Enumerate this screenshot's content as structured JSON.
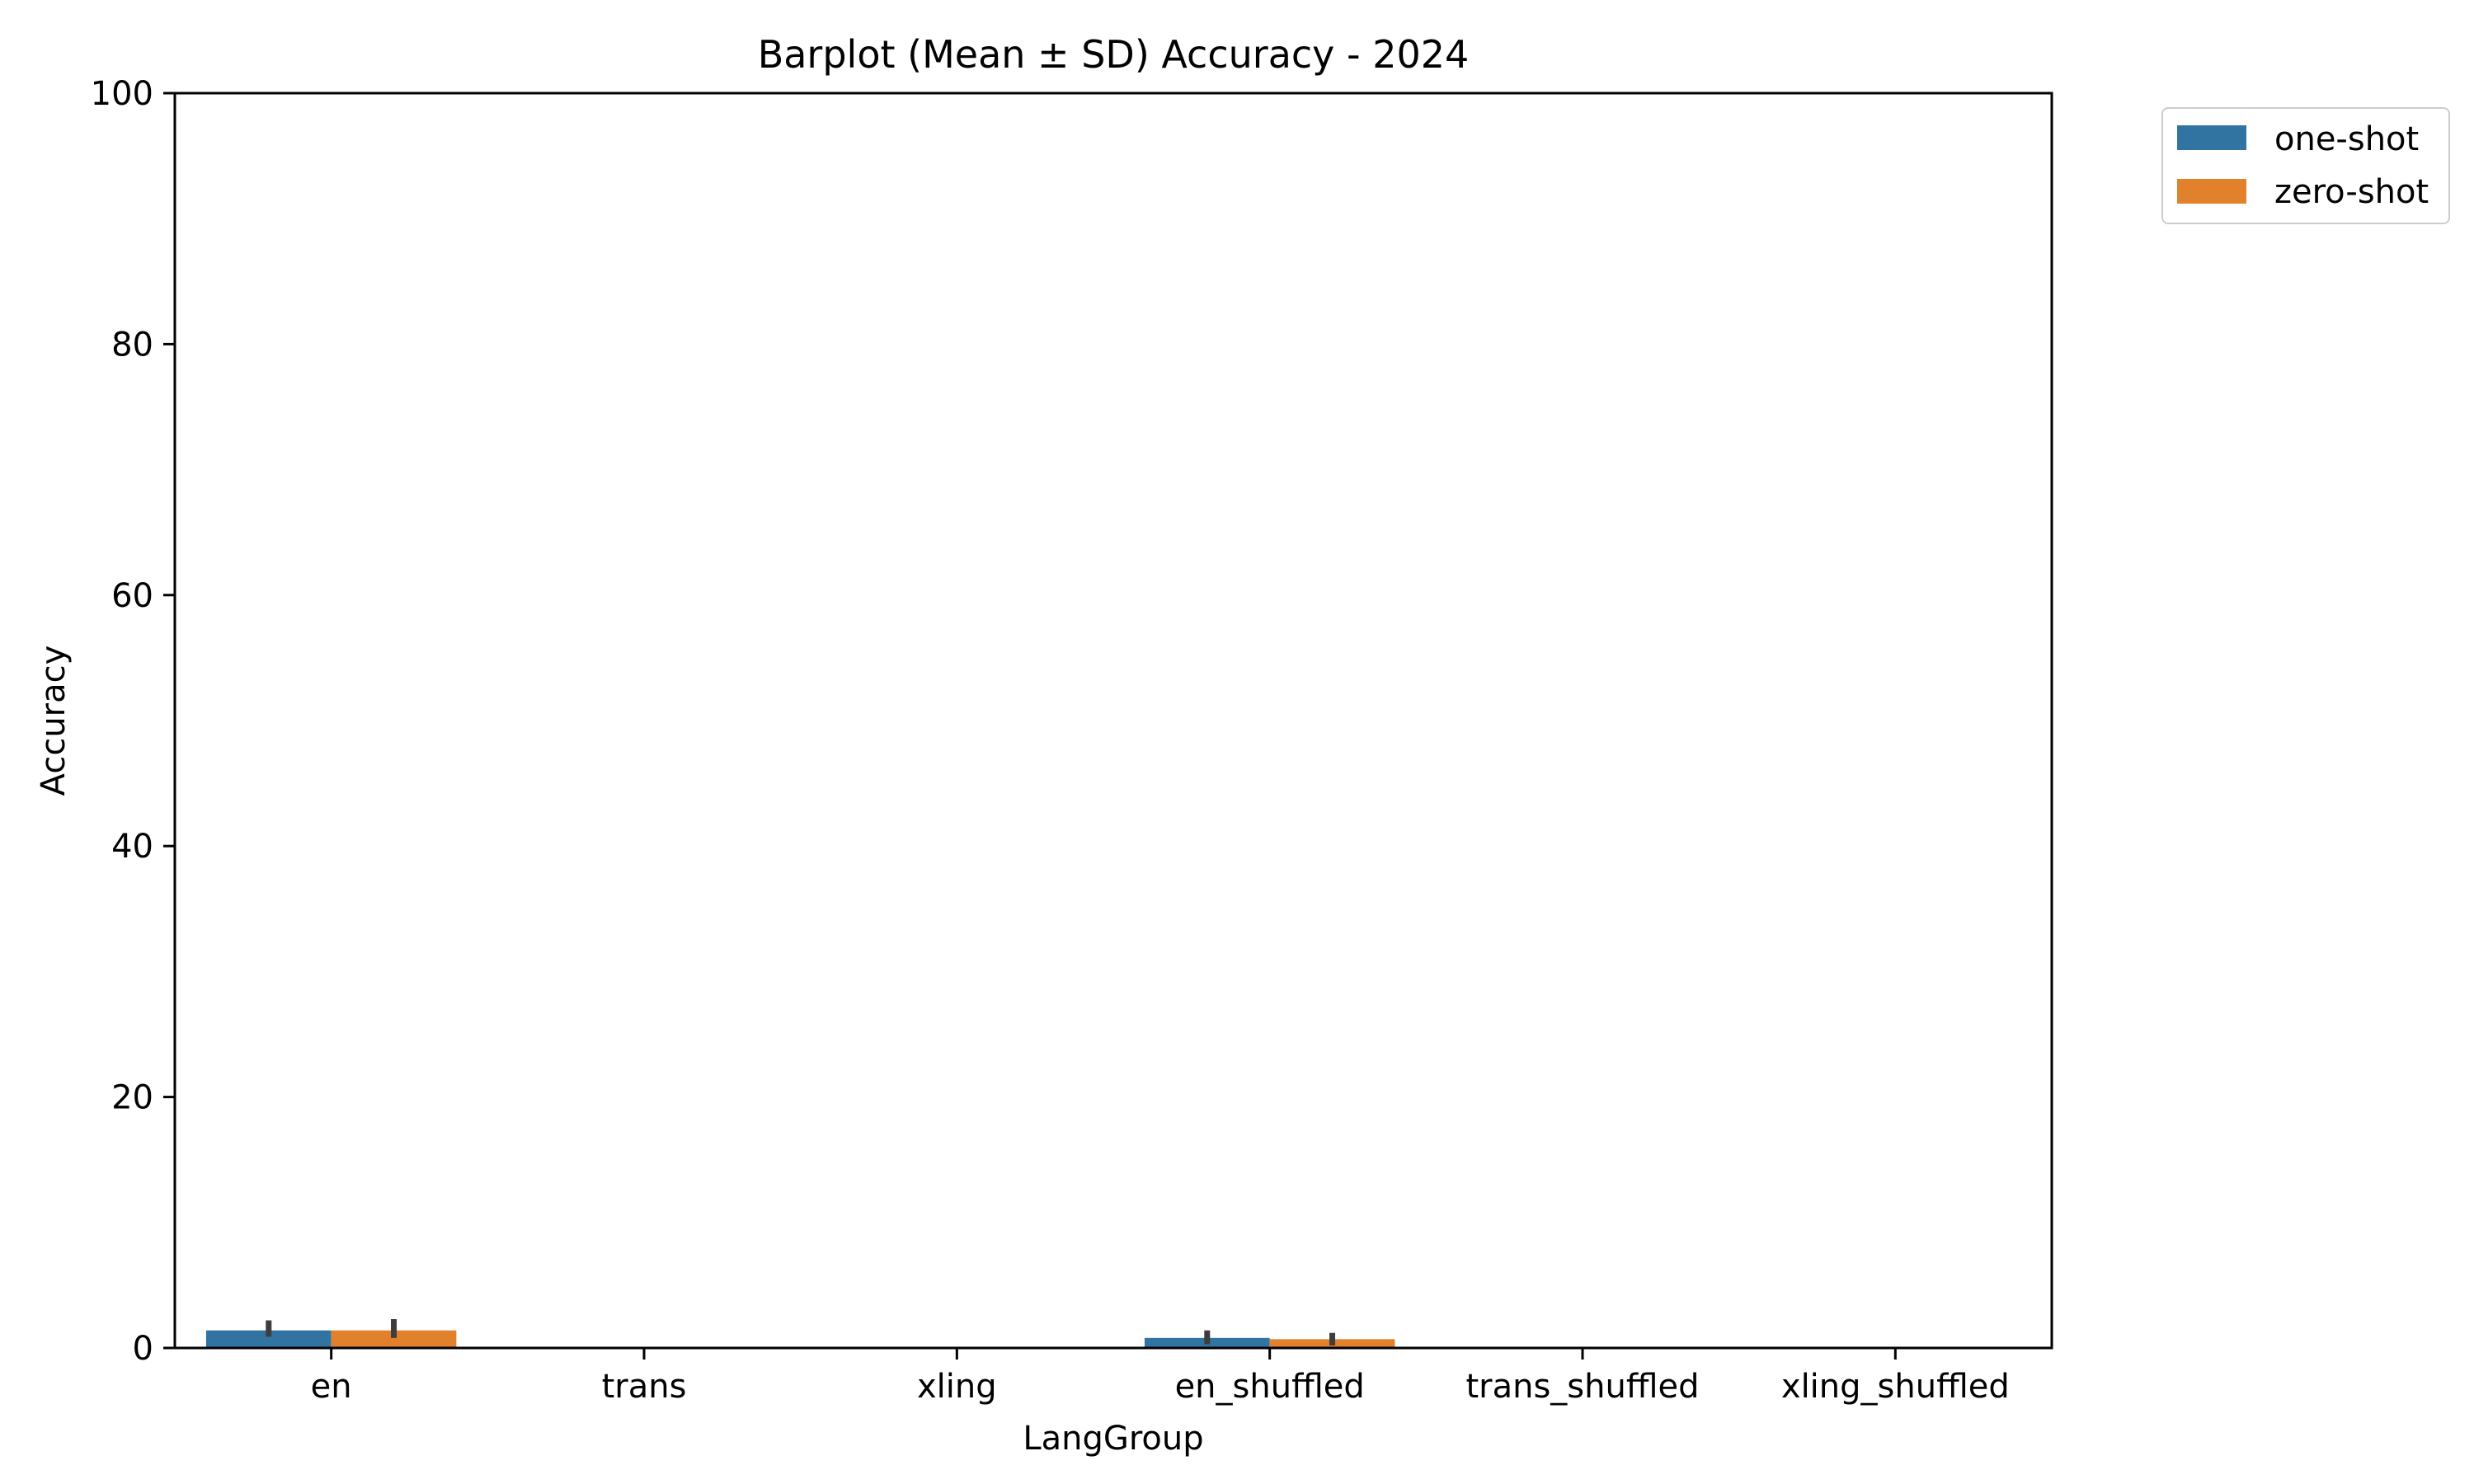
{
  "chart_data": {
    "type": "bar",
    "title": "Barplot (Mean ± SD) Accuracy - 2024",
    "xlabel": "LangGroup",
    "ylabel": "Accuracy",
    "ylim": [
      0,
      100
    ],
    "yticks": [
      "0",
      "20",
      "40",
      "60",
      "80",
      "100"
    ],
    "categories": [
      "en",
      "trans",
      "xling",
      "en_shuffled",
      "trans_shuffled",
      "xling_shuffled"
    ],
    "series": [
      {
        "name": "one-shot",
        "color": "#3274a1",
        "values": [
          1.4,
          0,
          0,
          0.8,
          0,
          0
        ],
        "error_low": [
          0.9,
          null,
          null,
          0.3,
          null,
          null
        ],
        "error_high": [
          2.2,
          null,
          null,
          1.4,
          null,
          null
        ]
      },
      {
        "name": "zero-shot",
        "color": "#e1812c",
        "values": [
          1.4,
          0,
          0,
          0.7,
          0,
          0
        ],
        "error_low": [
          0.8,
          null,
          null,
          0.2,
          null,
          null
        ],
        "error_high": [
          2.3,
          null,
          null,
          1.2,
          null,
          null
        ]
      }
    ],
    "error_bar_color": "#3d3d3d",
    "legend_position": "outside-top-right",
    "grid": false
  }
}
